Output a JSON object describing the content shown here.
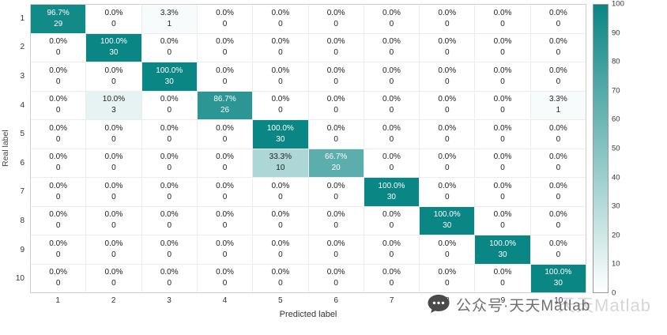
{
  "chart_data": {
    "type": "heatmap",
    "title": "",
    "xlabel": "Predicted label",
    "ylabel": "Real label",
    "x_categories": [
      "1",
      "2",
      "3",
      "4",
      "5",
      "6",
      "7",
      "8",
      "9",
      "10"
    ],
    "y_categories": [
      "1",
      "2",
      "3",
      "4",
      "5",
      "6",
      "7",
      "8",
      "9",
      "10"
    ],
    "percent": [
      [
        96.7,
        0.0,
        3.3,
        0.0,
        0.0,
        0.0,
        0.0,
        0.0,
        0.0,
        0.0
      ],
      [
        0.0,
        100.0,
        0.0,
        0.0,
        0.0,
        0.0,
        0.0,
        0.0,
        0.0,
        0.0
      ],
      [
        0.0,
        0.0,
        100.0,
        0.0,
        0.0,
        0.0,
        0.0,
        0.0,
        0.0,
        0.0
      ],
      [
        0.0,
        10.0,
        0.0,
        86.7,
        0.0,
        0.0,
        0.0,
        0.0,
        0.0,
        3.3
      ],
      [
        0.0,
        0.0,
        0.0,
        0.0,
        100.0,
        0.0,
        0.0,
        0.0,
        0.0,
        0.0
      ],
      [
        0.0,
        0.0,
        0.0,
        0.0,
        33.3,
        66.7,
        0.0,
        0.0,
        0.0,
        0.0
      ],
      [
        0.0,
        0.0,
        0.0,
        0.0,
        0.0,
        0.0,
        100.0,
        0.0,
        0.0,
        0.0
      ],
      [
        0.0,
        0.0,
        0.0,
        0.0,
        0.0,
        0.0,
        0.0,
        100.0,
        0.0,
        0.0
      ],
      [
        0.0,
        0.0,
        0.0,
        0.0,
        0.0,
        0.0,
        0.0,
        0.0,
        100.0,
        0.0
      ],
      [
        0.0,
        0.0,
        0.0,
        0.0,
        0.0,
        0.0,
        0.0,
        0.0,
        0.0,
        100.0
      ]
    ],
    "counts": [
      [
        29,
        0,
        1,
        0,
        0,
        0,
        0,
        0,
        0,
        0
      ],
      [
        0,
        30,
        0,
        0,
        0,
        0,
        0,
        0,
        0,
        0
      ],
      [
        0,
        0,
        30,
        0,
        0,
        0,
        0,
        0,
        0,
        0
      ],
      [
        0,
        3,
        0,
        26,
        0,
        0,
        0,
        0,
        0,
        1
      ],
      [
        0,
        0,
        0,
        0,
        30,
        0,
        0,
        0,
        0,
        0
      ],
      [
        0,
        0,
        0,
        0,
        10,
        20,
        0,
        0,
        0,
        0
      ],
      [
        0,
        0,
        0,
        0,
        0,
        0,
        30,
        0,
        0,
        0
      ],
      [
        0,
        0,
        0,
        0,
        0,
        0,
        0,
        30,
        0,
        0
      ],
      [
        0,
        0,
        0,
        0,
        0,
        0,
        0,
        0,
        30,
        0
      ],
      [
        0,
        0,
        0,
        0,
        0,
        0,
        0,
        0,
        0,
        30
      ]
    ],
    "colorbar": {
      "min": 0,
      "max": 100,
      "ticks": [
        0,
        10,
        20,
        30,
        40,
        50,
        60,
        70,
        80,
        90,
        100
      ]
    },
    "colors": {
      "high": "#0a8684",
      "low": "#ffffff",
      "cell_text_dark": "#222222",
      "cell_text_light": "#ffffff"
    },
    "legend": "none",
    "grid": true
  },
  "watermark": {
    "text": "公众号·天天Matlab",
    "ghost_text": "天天Matlab",
    "icon": "chat-bubble-icon"
  }
}
